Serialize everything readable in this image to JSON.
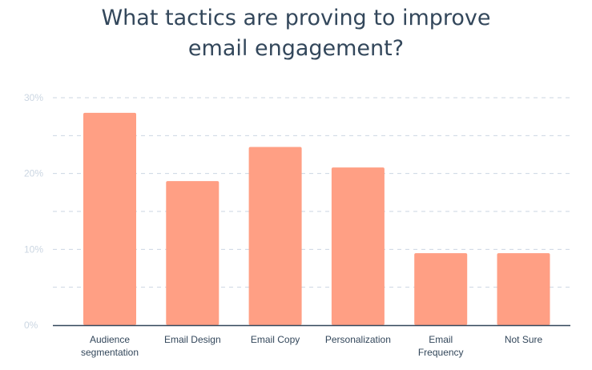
{
  "chart_data": {
    "type": "bar",
    "title_lines": [
      "What tactics are proving to improve",
      "email engagement?"
    ],
    "categories": [
      [
        "Audience",
        "segmentation"
      ],
      [
        "Email Design"
      ],
      [
        "Email Copy"
      ],
      [
        "Personalization"
      ],
      [
        "Email",
        "Frequency"
      ],
      [
        "Not Sure"
      ]
    ],
    "values": [
      28,
      19,
      23.5,
      20.8,
      9.5,
      9.5
    ],
    "ylim": [
      0,
      30
    ],
    "y_ticks": [
      {
        "value": 0,
        "label": "0%"
      },
      {
        "value": 10,
        "label": "10%"
      },
      {
        "value": 20,
        "label": "20%"
      },
      {
        "value": 30,
        "label": "30%"
      }
    ],
    "gridlines": [
      5,
      10,
      15,
      20,
      25,
      30
    ],
    "grid": true,
    "legend": "none",
    "colors": {
      "bar": "#ff9f84",
      "grid": "#cbd6e2",
      "axis": "#33475b",
      "title": "#33475b",
      "tick": "#cbd6e2"
    }
  }
}
